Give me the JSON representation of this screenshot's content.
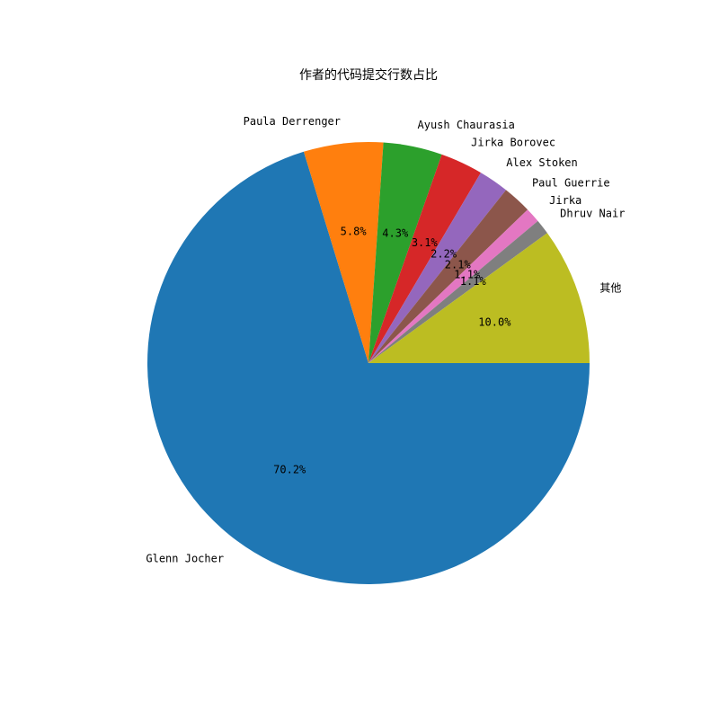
{
  "chart_data": {
    "type": "pie",
    "title": "作者的代码提交行数占比",
    "start_angle_deg": 0,
    "direction": "clockwise",
    "slices": [
      {
        "label": "Glenn Jocher",
        "value": 70.2,
        "pct_label": "70.2%",
        "color": "#1f77b4"
      },
      {
        "label": "Paula Derrenger",
        "value": 5.8,
        "pct_label": "5.8%",
        "color": "#ff7f0e"
      },
      {
        "label": "Ayush Chaurasia",
        "value": 4.3,
        "pct_label": "4.3%",
        "color": "#2ca02c"
      },
      {
        "label": "Jirka Borovec",
        "value": 3.1,
        "pct_label": "3.1%",
        "color": "#d62728"
      },
      {
        "label": "Alex Stoken",
        "value": 2.2,
        "pct_label": "2.2%",
        "color": "#9467bd"
      },
      {
        "label": "Paul Guerrie",
        "value": 2.1,
        "pct_label": "2.1%",
        "color": "#8c564b"
      },
      {
        "label": "Jirka",
        "value": 1.1,
        "pct_label": "1.1%",
        "color": "#e377c2"
      },
      {
        "label": "Dhruv Nair",
        "value": 1.1,
        "pct_label": "1.1%",
        "color": "#7f7f7f"
      },
      {
        "label": "其他",
        "value": 10.0,
        "pct_label": "10.0%",
        "color": "#bcbd22"
      }
    ]
  }
}
